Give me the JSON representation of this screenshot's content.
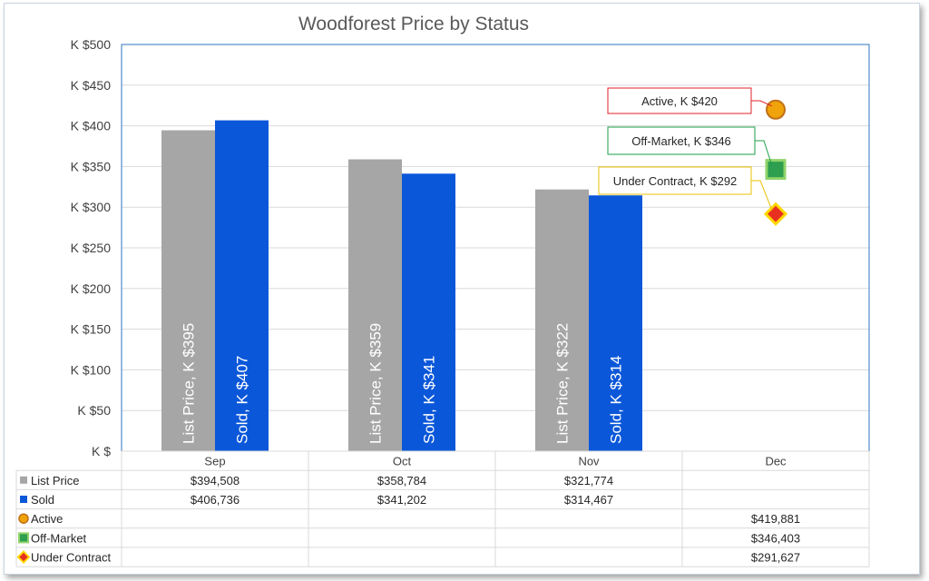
{
  "chart_data": {
    "type": "bar",
    "title": "Woodforest Price by Status",
    "categories": [
      "Sep",
      "Oct",
      "Nov",
      "Dec"
    ],
    "ylim": [
      0,
      500
    ],
    "y_tick_labels": [
      "K $",
      "K $50",
      "K $100",
      "K $150",
      "K $200",
      "K $250",
      "K $300",
      "K $350",
      "K $400",
      "K $450",
      "K $500"
    ],
    "grid": true,
    "legend": "data table below chart",
    "series": [
      {
        "name": "List Price",
        "kind": "bar",
        "color": "#a6a6a6",
        "values": [
          394.508,
          358.784,
          321.774,
          null
        ],
        "bar_labels": [
          "List Price, K $395",
          "List Price, K $359",
          "List Price, K $322",
          ""
        ],
        "table_values": [
          "$394,508",
          "$358,784",
          "$321,774",
          ""
        ]
      },
      {
        "name": "Sold",
        "kind": "bar",
        "color": "#0b57d9",
        "values": [
          406.736,
          341.202,
          314.467,
          null
        ],
        "bar_labels": [
          "Sold, K $407",
          "Sold, K $341",
          "Sold, K $314",
          ""
        ],
        "table_values": [
          "$406,736",
          "$341,202",
          "$314,467",
          ""
        ]
      },
      {
        "name": "Active",
        "kind": "marker",
        "marker": "circle",
        "color": "#f0a30a",
        "edge": "#c0701a",
        "label_border": "#e0202a",
        "values": [
          null,
          null,
          null,
          419.881
        ],
        "callout": "Active, K $420",
        "table_values": [
          "",
          "",
          "",
          "$419,881"
        ]
      },
      {
        "name": "Off-Market",
        "kind": "marker",
        "marker": "square",
        "color": "#2e9e4f",
        "edge": "#8fd36a",
        "label_border": "#1e9e4a",
        "values": [
          null,
          null,
          null,
          346.403
        ],
        "callout": "Off-Market, K $346",
        "table_values": [
          "",
          "",
          "",
          "$346,403"
        ]
      },
      {
        "name": "Under Contract",
        "kind": "marker",
        "marker": "diamond",
        "color": "#e83020",
        "edge": "#ffd700",
        "label_border": "#e8c000",
        "values": [
          null,
          null,
          null,
          291.627
        ],
        "callout": "Under Contract, K $292",
        "table_values": [
          "",
          "",
          "",
          "$291,627"
        ]
      }
    ]
  }
}
